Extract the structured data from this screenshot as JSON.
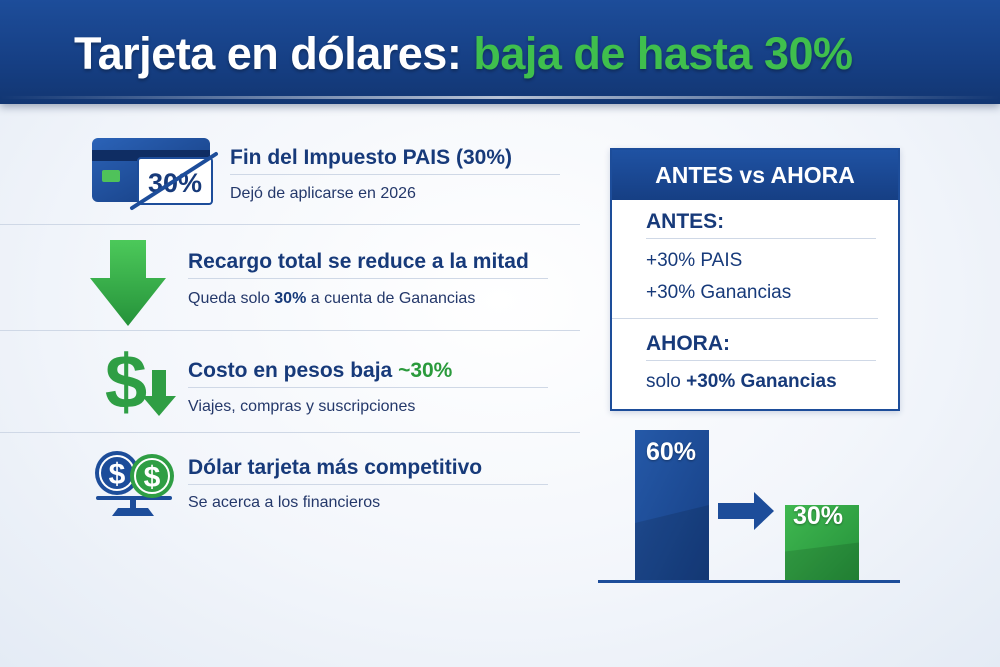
{
  "title": {
    "part1": "Tarjeta en dólares:",
    "part2": "baja de hasta 30%"
  },
  "colors": {
    "brand_blue": "#1d4d9a",
    "dark_blue": "#163f84",
    "accent_green": "#3fbf4d",
    "text_navy": "#173a7a"
  },
  "items": [
    {
      "icon": "credit-card-icon",
      "badge": "30%",
      "title": "Fin del Impuesto PAIS (30%)",
      "subtitle": "Dejó de aplicarse en 2026"
    },
    {
      "icon": "down-arrow-icon",
      "title": "Recargo total se reduce a la mitad",
      "subtitle_pre": "Queda solo ",
      "subtitle_bold": "30%",
      "subtitle_post": " a cuenta de Ganancias"
    },
    {
      "icon": "dollar-down-icon",
      "title_pre": "Costo en pesos baja ",
      "title_green": "~30%",
      "subtitle": "Viajes, compras y suscripciones"
    },
    {
      "icon": "dollar-peso-scale-icon",
      "title": "Dólar tarjeta más competitivo",
      "subtitle": "Se acerca a los financieros"
    }
  ],
  "comparison": {
    "header": "ANTES vs AHORA",
    "before_label": "ANTES:",
    "before_lines": [
      "+30% PAIS",
      "+30% Ganancias"
    ],
    "now_label": "AHORA:",
    "now_pre": "solo ",
    "now_bold": "+30% Ganancias"
  },
  "chart_data": {
    "type": "bar",
    "categories": [
      "",
      ""
    ],
    "values": [
      60,
      30
    ],
    "data_labels": [
      "60%",
      "30%"
    ],
    "colors": [
      "#1d4d9a",
      "#2f9e44"
    ],
    "ylim": [
      0,
      60
    ],
    "grid": false
  }
}
